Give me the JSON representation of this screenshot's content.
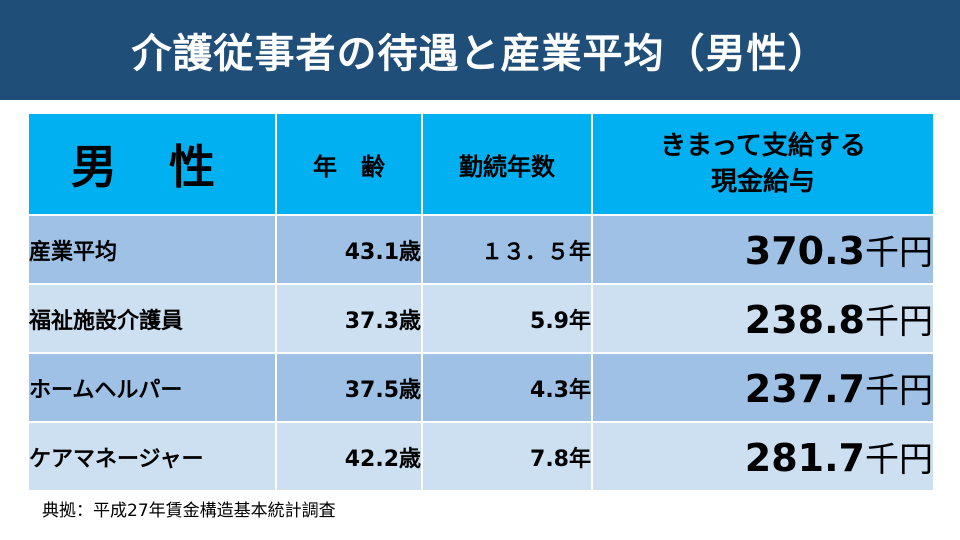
{
  "title": "介護従事者の待遇と産業平均（男性）",
  "table": {
    "headers": {
      "main": "男 性",
      "age": "年　齢",
      "years": "勤続年数",
      "pay_line1": "きまって支給する",
      "pay_line2": "現金給与"
    },
    "rows": [
      {
        "category": "産業平均",
        "age": "43.1歳",
        "years": "１３．５年",
        "pay": "370.3",
        "unit": "千円"
      },
      {
        "category": "福祉施設介護員",
        "age": "37.3歳",
        "years": "5.9年",
        "pay": "238.8",
        "unit": "千円"
      },
      {
        "category": "ホームヘルパー",
        "age": "37.5歳",
        "years": "4.3年",
        "pay": "237.7",
        "unit": "千円"
      },
      {
        "category": "ケアマネージャー",
        "age": "42.2歳",
        "years": "7.8年",
        "pay": "281.7",
        "unit": "千円"
      }
    ]
  },
  "source": "典拠：平成27年賃金構造基本統計調査",
  "colors": {
    "title_bg": "#1f4e79",
    "header_bg": "#00b0f0",
    "row_dark": "#9fc1e6",
    "row_light": "#cde0f2"
  }
}
